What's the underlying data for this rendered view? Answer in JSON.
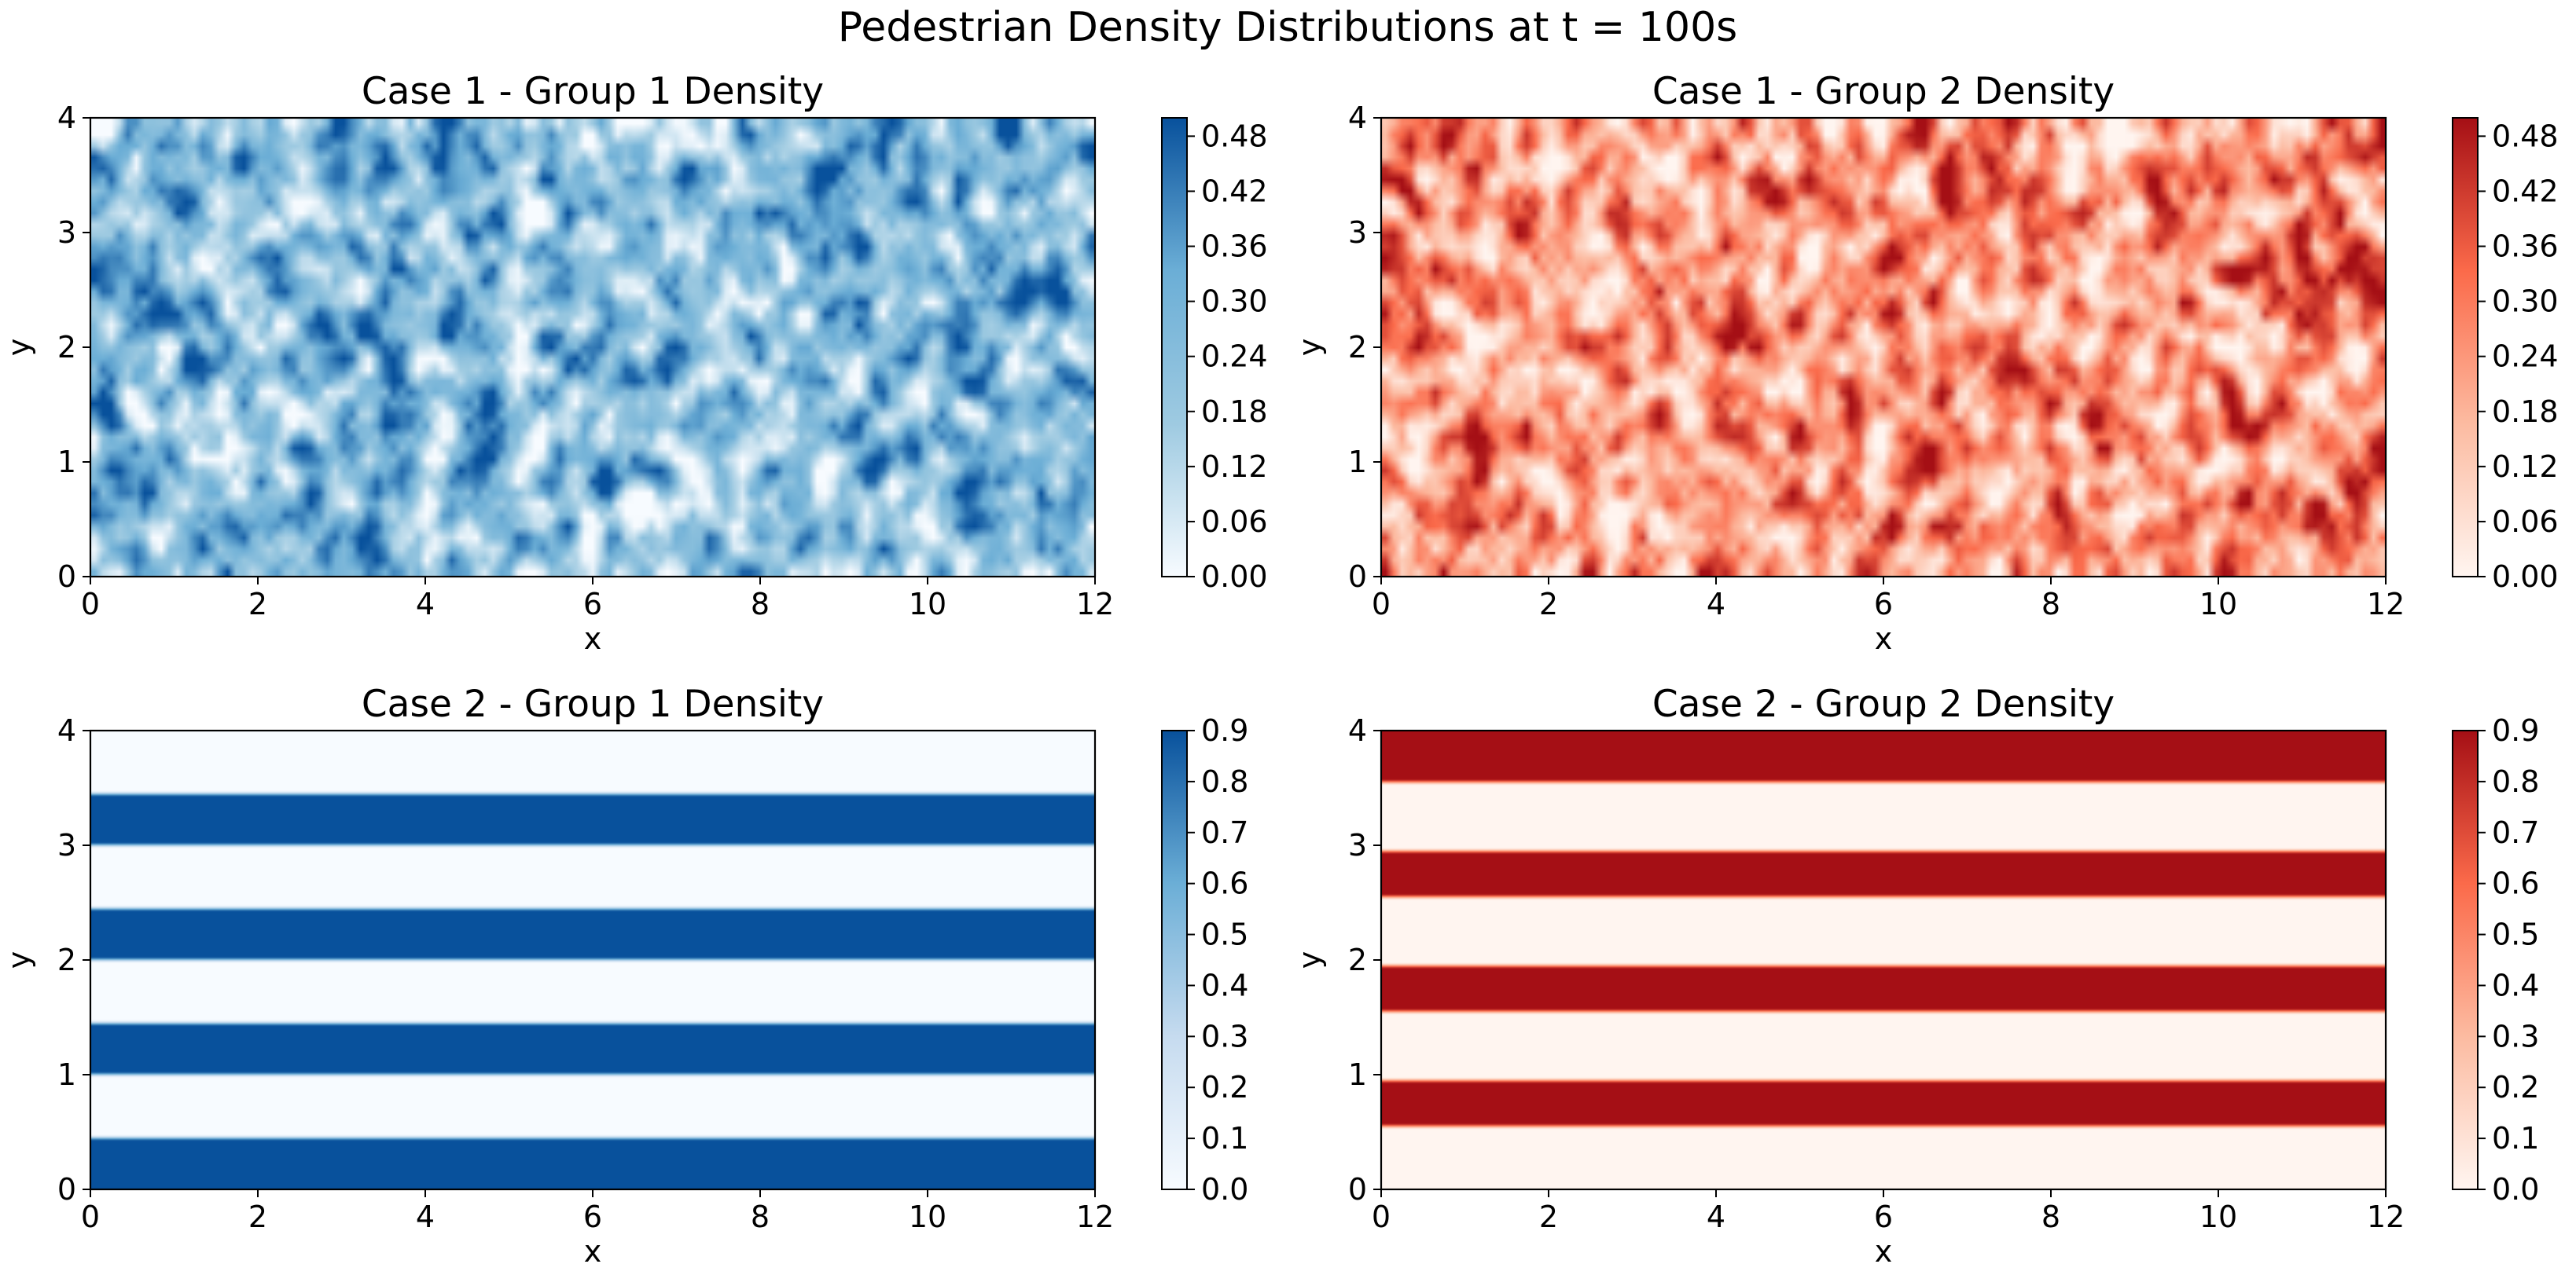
{
  "figure": {
    "suptitle": "Pedestrian Density Distributions at t = 100s"
  },
  "chart_data": [
    {
      "type": "heatmap",
      "title": "Case 1 - Group 1 Density",
      "xlabel": "x",
      "ylabel": "y",
      "xlim": [
        0,
        12
      ],
      "ylim": [
        0,
        4
      ],
      "xticks": [
        "0",
        "2",
        "4",
        "6",
        "8",
        "10",
        "12"
      ],
      "yticks": [
        "0",
        "1",
        "2",
        "3",
        "4"
      ],
      "colormap": "Blues",
      "cmap_stops": [
        "#f7fbff",
        "#9ecae1",
        "#6baed6",
        "#08519c"
      ],
      "colorbar": {
        "min": 0,
        "max": 0.5,
        "ticks": [
          "0.00",
          "0.06",
          "0.12",
          "0.18",
          "0.24",
          "0.30",
          "0.36",
          "0.42",
          "0.48"
        ]
      },
      "pattern": "random",
      "value_range": [
        0.0,
        0.5
      ],
      "grid": [
        121,
        41
      ],
      "seed": 11
    },
    {
      "type": "heatmap",
      "title": "Case 1 - Group 2 Density",
      "xlabel": "x",
      "ylabel": "y",
      "xlim": [
        0,
        12
      ],
      "ylim": [
        0,
        4
      ],
      "xticks": [
        "0",
        "2",
        "4",
        "6",
        "8",
        "10",
        "12"
      ],
      "yticks": [
        "0",
        "1",
        "2",
        "3",
        "4"
      ],
      "colormap": "Reds",
      "cmap_stops": [
        "#fff5f0",
        "#fcbba1",
        "#fb6a4a",
        "#a50f15"
      ],
      "colorbar": {
        "min": 0,
        "max": 0.5,
        "ticks": [
          "0.00",
          "0.06",
          "0.12",
          "0.18",
          "0.24",
          "0.30",
          "0.36",
          "0.42",
          "0.48"
        ]
      },
      "pattern": "random",
      "value_range": [
        0.0,
        0.5
      ],
      "grid": [
        121,
        41
      ],
      "seed": 23
    },
    {
      "type": "heatmap",
      "title": "Case 2 - Group 1 Density",
      "xlabel": "x",
      "ylabel": "y",
      "xlim": [
        0,
        12
      ],
      "ylim": [
        0,
        4
      ],
      "xticks": [
        "0",
        "2",
        "4",
        "6",
        "8",
        "10",
        "12"
      ],
      "yticks": [
        "0",
        "1",
        "2",
        "3",
        "4"
      ],
      "colormap": "Blues",
      "cmap_stops": [
        "#f7fbff",
        "#c6dbef",
        "#6baed6",
        "#08519c"
      ],
      "colorbar": {
        "min": 0,
        "max": 0.9,
        "ticks": [
          "0.0",
          "0.1",
          "0.2",
          "0.3",
          "0.4",
          "0.5",
          "0.6",
          "0.7",
          "0.8",
          "0.9"
        ]
      },
      "pattern": "horizontal-bands",
      "high_value": 0.9,
      "low_value": 0.0,
      "high_bands_y": [
        [
          0.0,
          0.45
        ],
        [
          1.0,
          1.45
        ],
        [
          2.0,
          2.45
        ],
        [
          3.0,
          3.45
        ]
      ]
    },
    {
      "type": "heatmap",
      "title": "Case 2 - Group 2 Density",
      "xlabel": "x",
      "ylabel": "y",
      "xlim": [
        0,
        12
      ],
      "ylim": [
        0,
        4
      ],
      "xticks": [
        "0",
        "2",
        "4",
        "6",
        "8",
        "10",
        "12"
      ],
      "yticks": [
        "0",
        "1",
        "2",
        "3",
        "4"
      ],
      "colormap": "Reds",
      "cmap_stops": [
        "#fff5f0",
        "#fcbba1",
        "#fb6a4a",
        "#a50f15"
      ],
      "colorbar": {
        "min": 0,
        "max": 0.9,
        "ticks": [
          "0.0",
          "0.1",
          "0.2",
          "0.3",
          "0.4",
          "0.5",
          "0.6",
          "0.7",
          "0.8",
          "0.9"
        ]
      },
      "pattern": "horizontal-bands",
      "high_value": 0.9,
      "low_value": 0.0,
      "high_bands_y": [
        [
          0.55,
          0.95
        ],
        [
          1.55,
          1.95
        ],
        [
          2.55,
          2.95
        ],
        [
          3.55,
          4.0
        ]
      ]
    }
  ]
}
